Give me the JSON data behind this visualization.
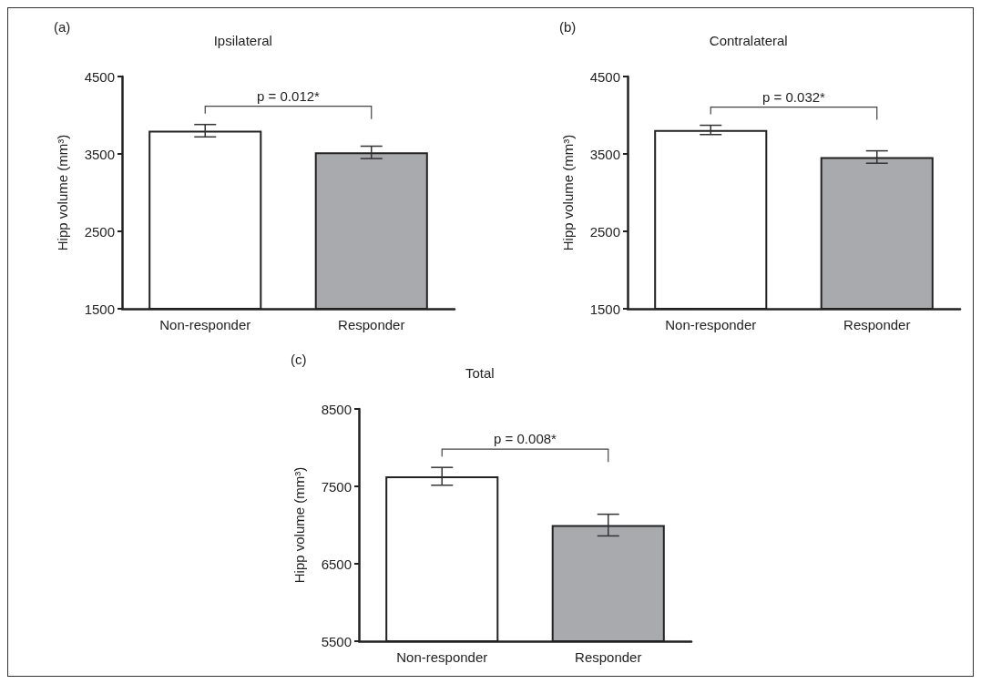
{
  "chart_data": [
    {
      "type": "bar",
      "title": "Ipsilateral",
      "ylabel": "Hipp volume (mm³)",
      "categories": [
        "Non-responder",
        "Responder"
      ],
      "values": [
        3800,
        3520
      ],
      "errors": [
        80,
        80
      ],
      "colors": [
        "#ffffff",
        "#a8aaad"
      ],
      "ylim": [
        1500,
        4500
      ],
      "yticks": [
        1500,
        2500,
        3500,
        4500
      ],
      "grid": false,
      "annotations": [
        "(a)",
        "p = 0.012*"
      ]
    },
    {
      "type": "bar",
      "title": "Contralateral",
      "ylabel": "Hipp volume (mm³)",
      "categories": [
        "Non-responder",
        "Responder"
      ],
      "values": [
        3810,
        3460
      ],
      "errors": [
        60,
        80
      ],
      "colors": [
        "#ffffff",
        "#a8aaad"
      ],
      "ylim": [
        1500,
        4500
      ],
      "yticks": [
        1500,
        2500,
        3500,
        4500
      ],
      "grid": false,
      "annotations": [
        "(b)",
        "p = 0.032*"
      ]
    },
    {
      "type": "bar",
      "title": "Total",
      "ylabel": "Hipp volume (mm³)",
      "categories": [
        "Non-responder",
        "Responder"
      ],
      "values": [
        7630,
        7000
      ],
      "errors": [
        115,
        140
      ],
      "colors": [
        "#ffffff",
        "#a8aaad"
      ],
      "ylim": [
        5500,
        8500
      ],
      "yticks": [
        5500,
        6500,
        7500,
        8500
      ],
      "grid": false,
      "annotations": [
        "(c)",
        "p = 0.008*"
      ]
    }
  ]
}
